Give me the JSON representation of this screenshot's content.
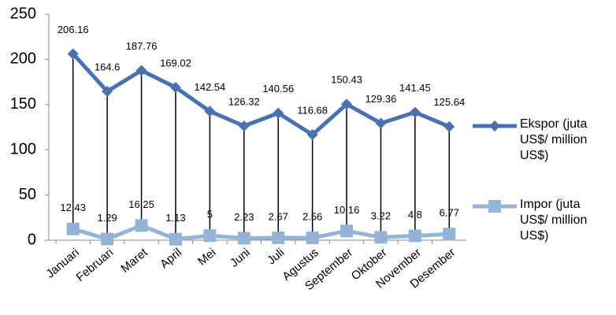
{
  "chart_data": {
    "type": "line",
    "categories": [
      "Januari",
      "Februari",
      "Maret",
      "April",
      "Mei",
      "Juni",
      "Juli",
      "Agustus",
      "September",
      "Oktober",
      "November",
      "Desember"
    ],
    "series": [
      {
        "name": "Ekspor (juta US$/ million US$)",
        "color": "#4a72b0",
        "marker": "diamond",
        "values": [
          206.16,
          164.6,
          187.76,
          169.02,
          142.54,
          126.32,
          140.56,
          116.68,
          150.43,
          129.36,
          141.45,
          125.64
        ]
      },
      {
        "name": "Impor  (juta US$/ million US$)",
        "color": "#95b3d7",
        "marker": "square",
        "values": [
          12.43,
          1.29,
          16.25,
          1.13,
          5,
          2.23,
          2.67,
          2.56,
          10.16,
          3.22,
          4.8,
          6.77
        ]
      }
    ],
    "ylim": [
      0,
      250
    ],
    "yticks": [
      0,
      50,
      100,
      150,
      200,
      250
    ],
    "legend": "right"
  }
}
